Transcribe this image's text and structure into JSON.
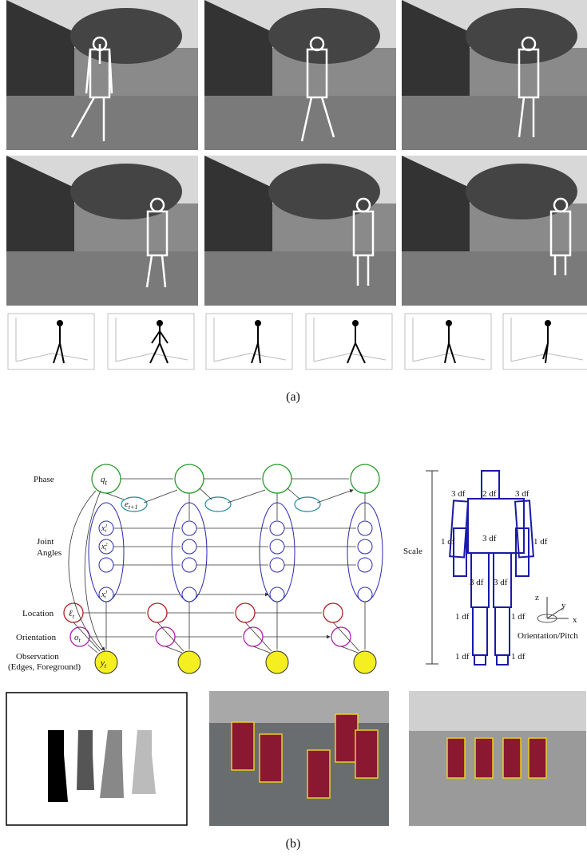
{
  "panel_a": {
    "caption": "(a)"
  },
  "model": {
    "row_labels": [
      "Phase",
      "Joint",
      "Angles",
      "Location",
      "Orientation",
      "Observation",
      "(Edges, Foreground)"
    ],
    "nodes": {
      "phase": {
        "main": "q",
        "sub": "t"
      },
      "transition": {
        "main": "e",
        "sub": "t+1"
      },
      "joints": [
        {
          "main": "x",
          "sub": "t",
          "sup": "1"
        },
        {
          "main": "x",
          "sub": "t",
          "sup": "2"
        },
        {
          "main": "x",
          "sub": "t",
          "sup": "J"
        }
      ],
      "location": {
        "main": "ℓ",
        "sub": "t"
      },
      "orientation": {
        "main": "o",
        "sub": "t"
      },
      "observation": {
        "main": "y",
        "sub": "t"
      }
    }
  },
  "body": {
    "scale": "Scale",
    "df_labels": [
      "3 df",
      "2 df",
      "3 df",
      "3 df",
      "1 df",
      "1 df",
      "3 df",
      "3 df",
      "1 df",
      "1 df",
      "1 df",
      "1 df"
    ],
    "axes": [
      "z",
      "y",
      "x"
    ],
    "orientation_label": "Orientation/Pitch"
  },
  "panel_b": {
    "caption": "(b)"
  }
}
